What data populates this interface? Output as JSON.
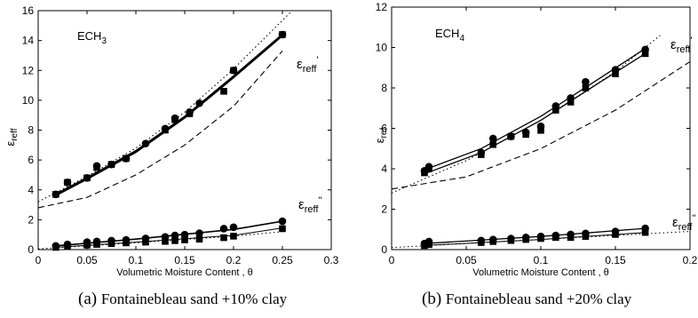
{
  "chart_data": [
    {
      "type": "scatter",
      "panel_label": "(a)",
      "caption": "Fontainebleau sand +10% clay",
      "annotation": "ECH3",
      "annotation_base": "ECH",
      "annotation_sub": "3",
      "xlabel": "Volumetric Moisture Content  ,  θ",
      "ylabel": "ε",
      "ylabel_sub": "reff",
      "xlim": [
        0,
        0.3
      ],
      "ylim": [
        0,
        16
      ],
      "xticks": [
        0,
        0.05,
        0.1,
        0.15,
        0.2,
        0.25,
        0.3
      ],
      "xtick_labels": [
        "0",
        "0.05",
        "0.1",
        "0.15",
        "0.2",
        "0.25",
        "0.3"
      ],
      "yticks": [
        0,
        2,
        4,
        6,
        8,
        10,
        12,
        14,
        16
      ],
      "ytick_labels": [
        "0",
        "2",
        "4",
        "6",
        "8",
        "10",
        "12",
        "14",
        "16"
      ],
      "grid": false,
      "label_real": {
        "base": "ε",
        "sub": "reff",
        "sup": "'"
      },
      "label_imag": {
        "base": "ε",
        "sub": "reff",
        "sup": "''"
      },
      "series": [
        {
          "marker": "circle",
          "x": [
            0.018,
            0.03,
            0.05,
            0.06,
            0.075,
            0.09,
            0.11,
            0.13,
            0.14,
            0.155,
            0.165,
            0.2,
            0.25
          ],
          "y": [
            3.7,
            4.5,
            4.8,
            5.6,
            5.7,
            6.1,
            7.1,
            8.1,
            8.8,
            9.2,
            9.8,
            12.0,
            14.4
          ]
        },
        {
          "marker": "square",
          "x": [
            0.018,
            0.03,
            0.05,
            0.06,
            0.075,
            0.09,
            0.13,
            0.14,
            0.155,
            0.19,
            0.2,
            0.25
          ],
          "y": [
            3.7,
            4.5,
            4.8,
            5.5,
            5.7,
            6.1,
            8.0,
            8.7,
            9.1,
            10.6,
            12.0,
            14.4
          ]
        },
        {
          "marker": "circle",
          "x": [
            0.018,
            0.03,
            0.05,
            0.06,
            0.075,
            0.09,
            0.11,
            0.13,
            0.14,
            0.15,
            0.165,
            0.19,
            0.2,
            0.25
          ],
          "y": [
            0.25,
            0.35,
            0.5,
            0.55,
            0.6,
            0.65,
            0.75,
            0.85,
            0.95,
            1.0,
            1.1,
            1.4,
            1.5,
            1.9
          ]
        },
        {
          "marker": "square",
          "x": [
            0.018,
            0.03,
            0.05,
            0.06,
            0.075,
            0.09,
            0.11,
            0.13,
            0.14,
            0.15,
            0.165,
            0.19,
            0.2,
            0.25
          ],
          "y": [
            0.15,
            0.2,
            0.3,
            0.35,
            0.4,
            0.45,
            0.5,
            0.55,
            0.6,
            0.65,
            0.7,
            0.8,
            0.9,
            1.4
          ]
        }
      ],
      "lines": [
        {
          "style": "solid",
          "width": 2.2,
          "x": [
            0.018,
            0.05,
            0.1,
            0.15,
            0.2,
            0.25
          ],
          "y": [
            3.7,
            4.8,
            6.6,
            8.9,
            11.6,
            14.4
          ]
        },
        {
          "style": "solid",
          "width": 1.2,
          "x": [
            0.018,
            0.05,
            0.1,
            0.15,
            0.2,
            0.25
          ],
          "y": [
            3.6,
            4.7,
            6.5,
            8.8,
            11.5,
            14.3
          ]
        },
        {
          "style": "dashed",
          "width": 1.1,
          "x": [
            0.0,
            0.05,
            0.1,
            0.15,
            0.2,
            0.25
          ],
          "y": [
            2.8,
            3.5,
            5.0,
            7.0,
            9.6,
            13.3
          ]
        },
        {
          "style": "dotted",
          "width": 1.1,
          "x": [
            0.0,
            0.05,
            0.1,
            0.15,
            0.2,
            0.26
          ],
          "y": [
            3.2,
            4.9,
            6.8,
            9.2,
            12.1,
            16.0
          ]
        },
        {
          "style": "solid",
          "width": 1.6,
          "x": [
            0.018,
            0.1,
            0.2,
            0.25
          ],
          "y": [
            0.25,
            0.7,
            1.35,
            1.9
          ]
        },
        {
          "style": "solid",
          "width": 1.0,
          "x": [
            0.018,
            0.1,
            0.2,
            0.25
          ],
          "y": [
            0.15,
            0.5,
            0.95,
            1.45
          ]
        },
        {
          "style": "dotted",
          "width": 1.0,
          "x": [
            0.0,
            0.1,
            0.2,
            0.25
          ],
          "y": [
            0.05,
            0.45,
            0.9,
            1.2
          ]
        }
      ]
    },
    {
      "type": "scatter",
      "panel_label": "(b)",
      "caption": "Fontainebleau sand +20% clay",
      "annotation": "ECH4",
      "annotation_base": "ECH",
      "annotation_sub": "4",
      "xlabel": "Volumetric Moisture Content  ,  θ",
      "ylabel": "ε",
      "ylabel_sub": "ref",
      "xlim": [
        0,
        0.2
      ],
      "ylim": [
        0,
        12
      ],
      "xticks": [
        0,
        0.05,
        0.1,
        0.15,
        0.2
      ],
      "xtick_labels": [
        "0",
        "0.05",
        "0.1",
        "0.15",
        "0.2"
      ],
      "yticks": [
        0,
        2,
        4,
        6,
        8,
        10,
        12
      ],
      "ytick_labels": [
        "0",
        "2",
        "4",
        "6",
        "8",
        "10",
        "12"
      ],
      "grid": false,
      "label_real": {
        "base": "ε",
        "sub": "reff",
        "sup": "'"
      },
      "label_imag": {
        "base": "ε",
        "sub": "reff",
        "sup": "''"
      },
      "series": [
        {
          "marker": "circle",
          "x": [
            0.022,
            0.025,
            0.06,
            0.068,
            0.08,
            0.09,
            0.1,
            0.11,
            0.12,
            0.13,
            0.15,
            0.17
          ],
          "y": [
            3.9,
            4.1,
            4.8,
            5.5,
            5.6,
            5.8,
            6.1,
            7.1,
            7.5,
            8.3,
            8.9,
            9.9
          ]
        },
        {
          "marker": "square",
          "x": [
            0.022,
            0.025,
            0.06,
            0.068,
            0.08,
            0.09,
            0.1,
            0.11,
            0.12,
            0.13,
            0.15,
            0.17
          ],
          "y": [
            3.8,
            4.0,
            4.7,
            5.2,
            5.6,
            5.7,
            5.9,
            6.9,
            7.3,
            8.0,
            8.7,
            9.7
          ]
        },
        {
          "marker": "circle",
          "x": [
            0.022,
            0.025,
            0.06,
            0.068,
            0.08,
            0.09,
            0.1,
            0.11,
            0.12,
            0.13,
            0.15,
            0.17
          ],
          "y": [
            0.3,
            0.4,
            0.45,
            0.5,
            0.55,
            0.6,
            0.65,
            0.7,
            0.75,
            0.8,
            0.9,
            1.05
          ]
        },
        {
          "marker": "square",
          "x": [
            0.022,
            0.025,
            0.06,
            0.068,
            0.08,
            0.09,
            0.1,
            0.11,
            0.12,
            0.13,
            0.15,
            0.17
          ],
          "y": [
            0.2,
            0.25,
            0.35,
            0.4,
            0.45,
            0.5,
            0.55,
            0.6,
            0.6,
            0.65,
            0.75,
            0.85
          ]
        }
      ],
      "lines": [
        {
          "style": "solid",
          "width": 1.3,
          "x": [
            0.022,
            0.06,
            0.1,
            0.14,
            0.17
          ],
          "y": [
            3.95,
            5.0,
            6.6,
            8.5,
            9.95
          ]
        },
        {
          "style": "solid",
          "width": 1.3,
          "x": [
            0.022,
            0.06,
            0.1,
            0.14,
            0.17
          ],
          "y": [
            3.75,
            4.8,
            6.4,
            8.3,
            9.7
          ]
        },
        {
          "style": "dashed",
          "width": 1.1,
          "x": [
            0.0,
            0.05,
            0.1,
            0.15,
            0.2
          ],
          "y": [
            3.0,
            3.6,
            5.0,
            6.9,
            9.3
          ]
        },
        {
          "style": "dotted",
          "width": 1.1,
          "x": [
            0.0,
            0.05,
            0.1,
            0.15,
            0.18
          ],
          "y": [
            2.8,
            4.4,
            6.4,
            8.8,
            10.6
          ]
        },
        {
          "style": "solid",
          "width": 1.3,
          "x": [
            0.022,
            0.1,
            0.17
          ],
          "y": [
            0.3,
            0.65,
            1.05
          ]
        },
        {
          "style": "solid",
          "width": 1.0,
          "x": [
            0.022,
            0.1,
            0.17
          ],
          "y": [
            0.2,
            0.5,
            0.85
          ]
        },
        {
          "style": "dotted",
          "width": 1.0,
          "x": [
            0.0,
            0.1,
            0.2
          ],
          "y": [
            0.1,
            0.5,
            0.9
          ]
        }
      ]
    }
  ]
}
